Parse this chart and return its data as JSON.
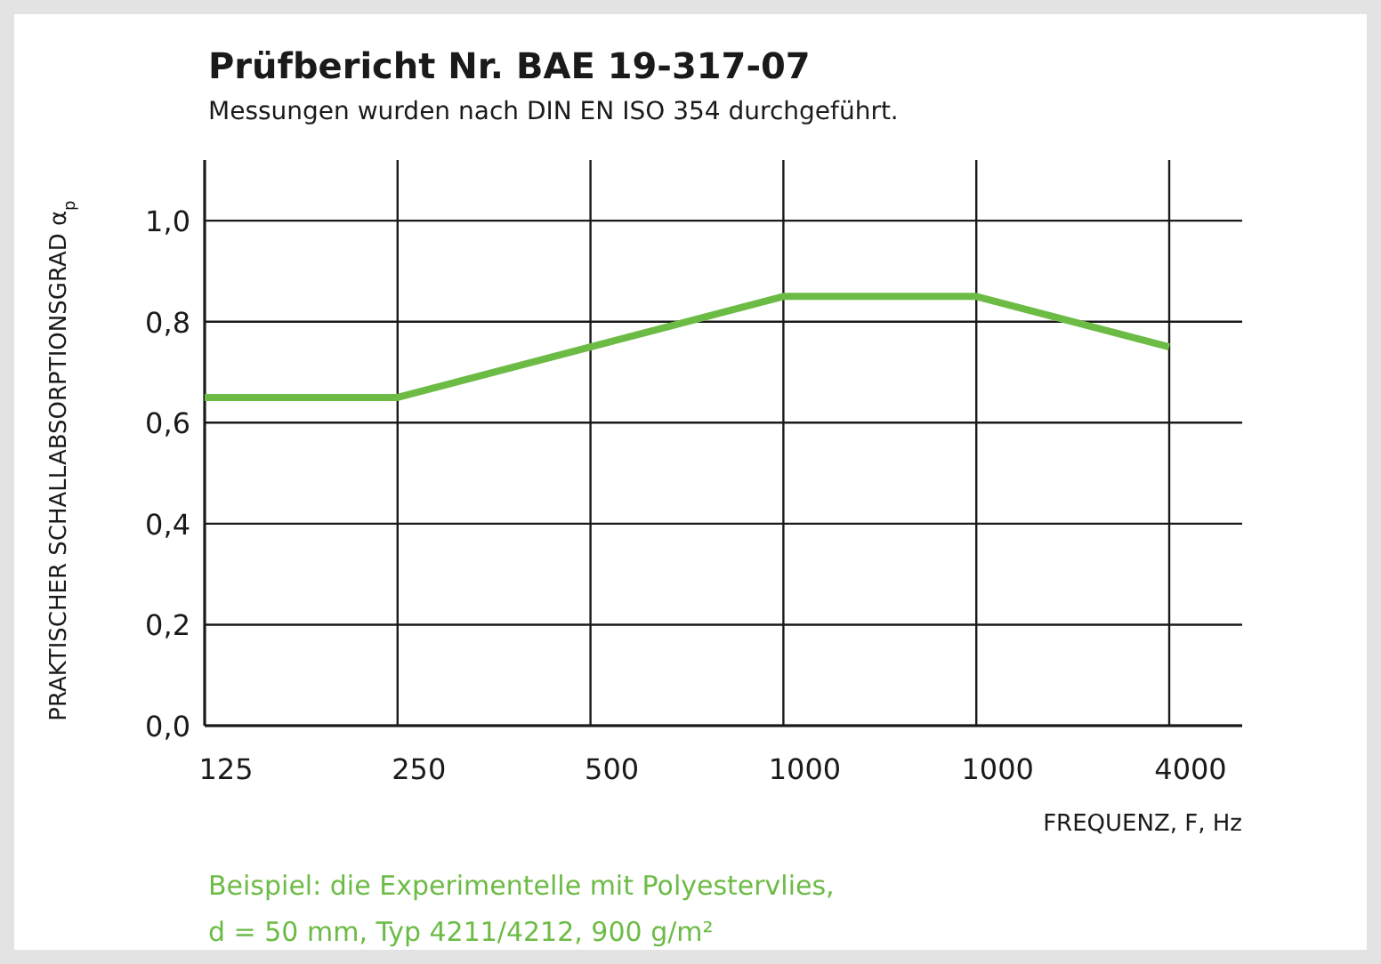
{
  "chart_data": {
    "type": "line",
    "title": "Prüfbericht Nr. BAE 19-317-07",
    "subtitle": "Messungen wurden nach DIN EN ISO 354 durchgeführt.",
    "xlabel": "FREQUENZ, F, Hz",
    "ylabel": "PRAKTISCHER SCHALLABSORPTIONSGRAD α$_{p}$",
    "categories": [
      "125",
      "250",
      "500",
      "1000",
      "1000",
      "4000"
    ],
    "series": [
      {
        "color": "#6cbb45",
        "values": [
          0.65,
          0.65,
          0.75,
          0.85,
          0.85,
          0.75
        ]
      }
    ],
    "ylim": [
      0,
      1.12
    ],
    "yticks": [
      {
        "value": 0,
        "label": "0,0"
      },
      {
        "value": 0.2,
        "label": "0,2"
      },
      {
        "value": 0.4,
        "label": "0,4"
      },
      {
        "value": 0.6,
        "label": "0,6"
      },
      {
        "value": 0.8,
        "label": "0,8"
      },
      {
        "value": 1,
        "label": "1,0"
      }
    ],
    "grid": true,
    "marker": "none",
    "line_style": "solid",
    "annotations": [
      "Beispiel: die Experimentelle mit Polyestervlies,",
      "d = 50 mm, Typ 4211/4212, 900 g/m²"
    ]
  }
}
